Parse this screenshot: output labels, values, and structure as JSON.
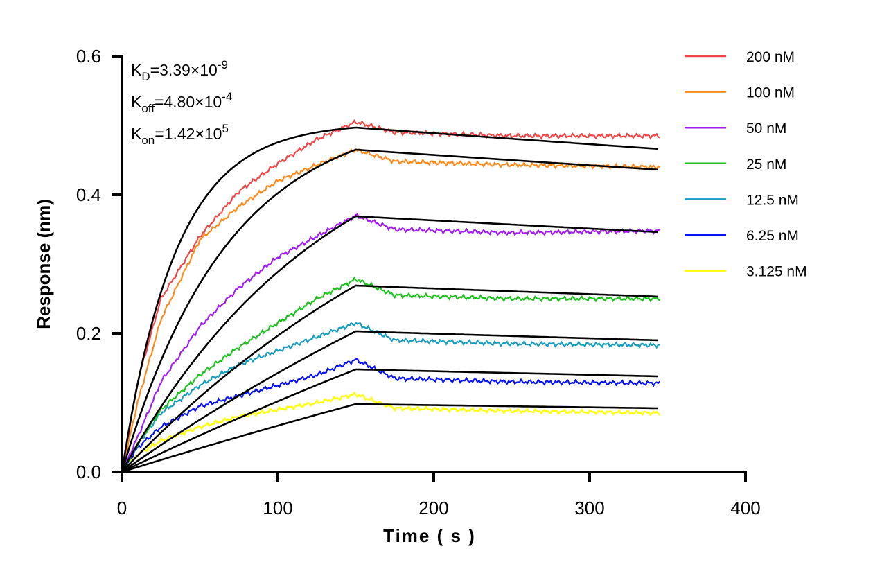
{
  "chart_data": {
    "type": "line",
    "title": "",
    "xlabel": "Time ( s )",
    "ylabel": "Response (nm)",
    "xlim": [
      0,
      400
    ],
    "ylim": [
      0,
      0.6
    ],
    "xticks": [
      "0",
      "100",
      "200",
      "300",
      "400"
    ],
    "yticks": [
      "0.0",
      "0.2",
      "0.4",
      "0.6"
    ],
    "grid": false,
    "legend_position": "right",
    "annotations": [
      {
        "base": "K",
        "sub": "D",
        "text": "=3.39×10",
        "sup": "-9"
      },
      {
        "base": "K",
        "sub": "off",
        "text": "=4.80×10",
        "sup": "-4"
      },
      {
        "base": "K",
        "sub": "on",
        "text": "=1.42×10",
        "sup": "5"
      }
    ],
    "kinetics": {
      "kon": 142000,
      "koff": 0.00048,
      "KD": 3.39e-09
    },
    "association_end": 150,
    "dissociation_end": 345,
    "time": [
      0,
      10,
      25,
      50,
      75,
      100,
      125,
      150,
      175,
      250,
      345
    ],
    "series": [
      {
        "name": "200 nM",
        "conc_nM": 200,
        "color": "#f04848",
        "values": [
          0,
          0.13,
          0.25,
          0.34,
          0.405,
          0.445,
          0.48,
          0.505,
          0.49,
          0.485,
          0.485
        ],
        "fit": [
          0.497,
          0.466
        ]
      },
      {
        "name": "100 nM",
        "conc_nM": 100,
        "color": "#ff8a1c",
        "values": [
          0,
          0.1,
          0.22,
          0.335,
          0.383,
          0.42,
          0.443,
          0.465,
          0.448,
          0.443,
          0.44
        ],
        "fit": [
          0.465,
          0.436
        ]
      },
      {
        "name": "50 nM",
        "conc_nM": 50,
        "color": "#a21ff0",
        "values": [
          0,
          0.05,
          0.13,
          0.21,
          0.266,
          0.31,
          0.34,
          0.37,
          0.35,
          0.345,
          0.348
        ],
        "fit": [
          0.369,
          0.346
        ]
      },
      {
        "name": "25 nM",
        "conc_nM": 25,
        "color": "#1fc21f",
        "values": [
          0,
          0.04,
          0.09,
          0.14,
          0.18,
          0.215,
          0.25,
          0.278,
          0.255,
          0.25,
          0.25
        ],
        "fit": [
          0.269,
          0.253
        ]
      },
      {
        "name": "12.5 nM",
        "conc_nM": 12.5,
        "color": "#1a9dbf",
        "values": [
          0,
          0.04,
          0.085,
          0.125,
          0.155,
          0.175,
          0.195,
          0.215,
          0.19,
          0.185,
          0.183
        ],
        "fit": [
          0.203,
          0.19
        ]
      },
      {
        "name": "6.25 nM",
        "conc_nM": 6.25,
        "color": "#0a14f0",
        "values": [
          0,
          0.035,
          0.065,
          0.095,
          0.11,
          0.125,
          0.14,
          0.162,
          0.135,
          0.13,
          0.128
        ],
        "fit": [
          0.148,
          0.138
        ]
      },
      {
        "name": "3.125 nM",
        "conc_nM": 3.125,
        "color": "#ffff00",
        "values": [
          0,
          0.025,
          0.045,
          0.065,
          0.08,
          0.09,
          0.1,
          0.112,
          0.092,
          0.088,
          0.085
        ],
        "fit": [
          0.098,
          0.092
        ]
      }
    ],
    "fit_color": "#000000"
  }
}
